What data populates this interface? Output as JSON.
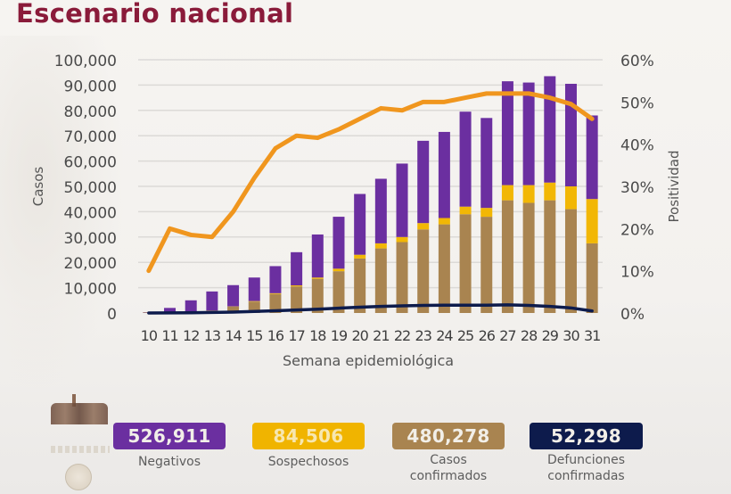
{
  "title": "Escenario nacional",
  "chart_data": {
    "type": "bar",
    "stacked": true,
    "title": "Escenario nacional",
    "xlabel": "Semana epidemiológica",
    "ylabel": "Casos",
    "y2label": "Positividad",
    "ylim": [
      0,
      100000
    ],
    "y2lim": [
      0,
      60
    ],
    "yticks": [
      "0",
      "10,000",
      "20,000",
      "30,000",
      "40,000",
      "50,000",
      "60,000",
      "70,000",
      "80,000",
      "90,000",
      "100,000"
    ],
    "y2ticks": [
      "0%",
      "10%",
      "20%",
      "30%",
      "40%",
      "50%",
      "60%"
    ],
    "grid": true,
    "categories": [
      "10",
      "11",
      "12",
      "13",
      "14",
      "15",
      "16",
      "17",
      "18",
      "19",
      "20",
      "21",
      "22",
      "23",
      "24",
      "25",
      "26",
      "27",
      "28",
      "29",
      "30",
      "31"
    ],
    "series": [
      {
        "name": "Casos confirmados",
        "kind": "bar",
        "color": "#a98450",
        "values": [
          200,
          300,
          500,
          1000,
          2500,
          4500,
          7500,
          10500,
          13500,
          16500,
          21500,
          25500,
          28000,
          33000,
          35000,
          39000,
          38000,
          44500,
          43500,
          44500,
          41000,
          27500
        ]
      },
      {
        "name": "Sospechosos",
        "kind": "bar",
        "color": "#f2b705",
        "values": [
          0,
          0,
          0,
          0,
          100,
          200,
          300,
          400,
          500,
          1000,
          1500,
          2000,
          2000,
          2500,
          2500,
          3000,
          3500,
          6000,
          7000,
          7000,
          9000,
          17500
        ]
      },
      {
        "name": "Negativos",
        "kind": "bar",
        "color": "#6b2fa0",
        "values": [
          100,
          1700,
          4500,
          7500,
          8400,
          9300,
          10700,
          13100,
          17000,
          20500,
          24000,
          25500,
          29000,
          32500,
          34000,
          37500,
          35500,
          41000,
          40500,
          42000,
          40500,
          33000
        ]
      },
      {
        "name": "Defunciones confirmadas",
        "kind": "line",
        "axis": "left",
        "color": "#0d1b4c",
        "values": [
          0,
          50,
          100,
          200,
          350,
          600,
          900,
          1200,
          1500,
          1900,
          2300,
          2600,
          2800,
          3000,
          3100,
          3100,
          3100,
          3200,
          3000,
          2600,
          2000,
          800
        ]
      },
      {
        "name": "Positividad",
        "kind": "line",
        "axis": "right",
        "unit": "%",
        "color": "#f0961e",
        "values": [
          10,
          20,
          18.5,
          18,
          24,
          32,
          39,
          42,
          41.5,
          43.5,
          46,
          48.5,
          48,
          50,
          50,
          51,
          52,
          52,
          52,
          51,
          49.5,
          46
        ]
      }
    ],
    "legend_position": "bottom"
  },
  "legend": [
    {
      "value": "526,911",
      "label": "Negativos",
      "color": "#6b2fa0"
    },
    {
      "value": "84,506",
      "label": "Sospechosos",
      "color": "#f0b400"
    },
    {
      "value": "480,278",
      "label": "Casos confirmados",
      "color": "#a98450"
    },
    {
      "value": "52,298",
      "label": "Defunciones confirmadas",
      "color": "#0d1b4c"
    }
  ]
}
